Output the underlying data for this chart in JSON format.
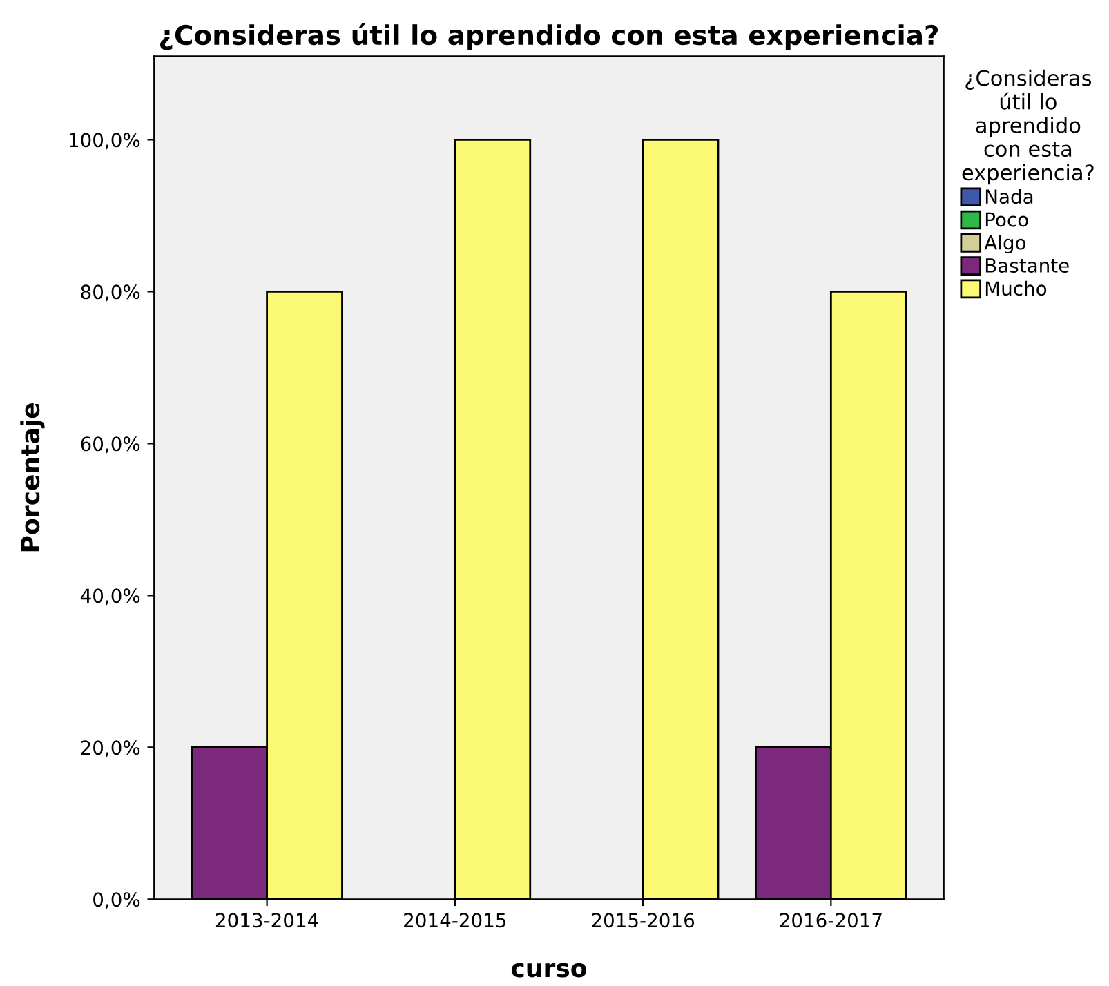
{
  "chart_data": {
    "type": "bar",
    "title": "¿Consideras útil lo aprendido con esta experiencia?",
    "xlabel": "curso",
    "ylabel": "Porcentaje",
    "legend_title": "¿Consideras\nútil lo\naprendido\ncon esta\nexperiencia?",
    "categories": [
      "2013-2014",
      "2014-2015",
      "2015-2016",
      "2016-2017"
    ],
    "series": [
      {
        "name": "Nada",
        "color": "#3e58ac",
        "values": [
          null,
          null,
          null,
          null
        ]
      },
      {
        "name": "Poco",
        "color": "#2eb848",
        "values": [
          null,
          null,
          null,
          null
        ]
      },
      {
        "name": "Algo",
        "color": "#d3ce97",
        "values": [
          null,
          null,
          null,
          null
        ]
      },
      {
        "name": "Bastante",
        "color": "#7c287d",
        "values": [
          20,
          null,
          null,
          20
        ]
      },
      {
        "name": "Mucho",
        "color": "#fbf873",
        "values": [
          80,
          100,
          100,
          80
        ]
      }
    ],
    "ylim": [
      0,
      111
    ],
    "yticks": [
      {
        "value": 0,
        "label": "0,0%"
      },
      {
        "value": 20,
        "label": "20,0%"
      },
      {
        "value": 40,
        "label": "40,0%"
      },
      {
        "value": 60,
        "label": "60,0%"
      },
      {
        "value": 80,
        "label": "80,0%"
      },
      {
        "value": 100,
        "label": "100,0%"
      }
    ],
    "legend": "right",
    "grid": false
  }
}
